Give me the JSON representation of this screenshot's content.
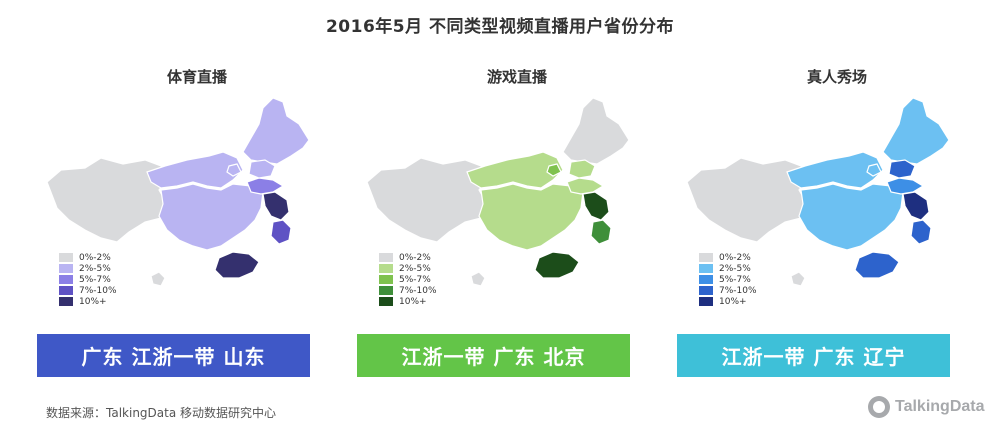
{
  "title": "2016年5月  不同类型视频直播用户省份分布",
  "source": "数据来源：TalkingData 移动数据研究中心",
  "logo": "TalkingData",
  "legend_labels": [
    "0%-2%",
    "2%-5%",
    "5%-7%",
    "7%-10%",
    "10%+"
  ],
  "base_color": "#d9dadc",
  "panels": [
    {
      "title": "体育直播",
      "banner": "广东  江浙一带  山东",
      "banner_color": "#3f58c7",
      "legend_colors": [
        "#d9dadc",
        "#b9b4f2",
        "#8b7fe6",
        "#5f52c4",
        "#34306e"
      ],
      "regions": {
        "north": "#b9b4f2",
        "northeast": "#b9b4f2",
        "central": "#b9b4f2",
        "shandong": "#8b7fe6",
        "jiangsu": "#34306e",
        "zhejiang": "#5f52c4",
        "guangdong": "#34306e",
        "beijing": "#b9b4f2",
        "liaoning": "#b9b4f2"
      }
    },
    {
      "title": "游戏直播",
      "banner": "江浙一带  广东  北京",
      "banner_color": "#63c548",
      "legend_colors": [
        "#d9dadc",
        "#b5dc8c",
        "#7fc24e",
        "#3f8f3a",
        "#1c4d1a"
      ],
      "regions": {
        "north": "#b5dc8c",
        "northeast": "#d9dadc",
        "central": "#b5dc8c",
        "shandong": "#b5dc8c",
        "jiangsu": "#1c4d1a",
        "zhejiang": "#3f8f3a",
        "guangdong": "#1c4d1a",
        "beijing": "#7fc24e",
        "liaoning": "#b5dc8c"
      }
    },
    {
      "title": "真人秀场",
      "banner": "江浙一带  广东  辽宁",
      "banner_color": "#3ec0d8",
      "legend_colors": [
        "#d9dadc",
        "#6cc0f2",
        "#3d8fe6",
        "#2d63cc",
        "#1e2f80"
      ],
      "regions": {
        "north": "#6cc0f2",
        "northeast": "#6cc0f2",
        "central": "#6cc0f2",
        "shandong": "#3d8fe6",
        "jiangsu": "#1e2f80",
        "zhejiang": "#2d63cc",
        "guangdong": "#2d63cc",
        "beijing": "#6cc0f2",
        "liaoning": "#2d63cc"
      }
    }
  ]
}
